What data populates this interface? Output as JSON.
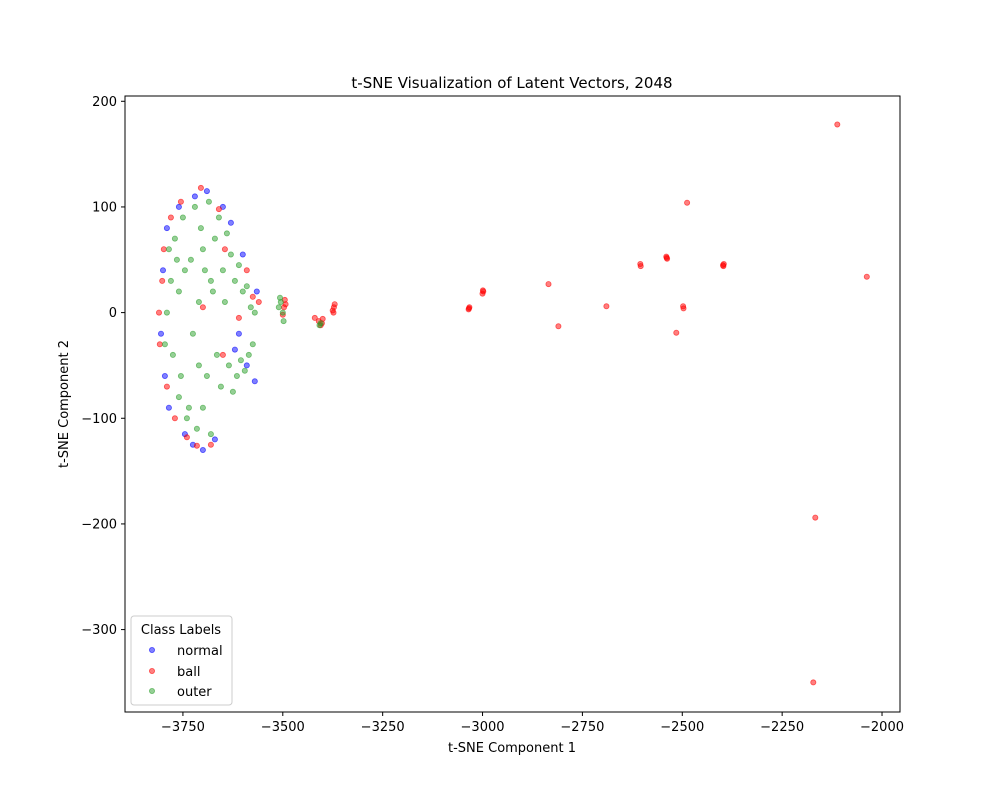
{
  "chart_data": {
    "type": "scatter",
    "title": "t-SNE Visualization of Latent Vectors, 2048",
    "xlabel": "t-SNE Component 1",
    "ylabel": "t-SNE Component 2",
    "xlim": [
      -3895,
      -1955
    ],
    "ylim": [
      -378,
      205
    ],
    "xticks": [
      -3750,
      -3500,
      -3250,
      -3000,
      -2750,
      -2500,
      -2250,
      -2000
    ],
    "yticks": [
      200,
      100,
      0,
      -100,
      -200,
      -300
    ],
    "xtick_labels": [
      "−3750",
      "−3500",
      "−3250",
      "−3000",
      "−2750",
      "−2500",
      "−2250",
      "−2000"
    ],
    "ytick_labels": [
      "200",
      "100",
      "0",
      "−100",
      "−200",
      "−300"
    ],
    "grid": false,
    "legend": {
      "title": "Class Labels",
      "placement": "lower-left"
    },
    "series": [
      {
        "name": "normal",
        "color": "#0000ff",
        "points": [
          [
            -3805,
            -20
          ],
          [
            -3800,
            40
          ],
          [
            -3795,
            -60
          ],
          [
            -3790,
            80
          ],
          [
            -3785,
            -90
          ],
          [
            -3760,
            100
          ],
          [
            -3745,
            -115
          ],
          [
            -3725,
            -125
          ],
          [
            -3700,
            -130
          ],
          [
            -3690,
            115
          ],
          [
            -3670,
            -120
          ],
          [
            -3650,
            100
          ],
          [
            -3630,
            85
          ],
          [
            -3610,
            -20
          ],
          [
            -3600,
            55
          ],
          [
            -3590,
            -50
          ],
          [
            -3570,
            -65
          ],
          [
            -3565,
            20
          ],
          [
            -3620,
            -35
          ],
          [
            -3720,
            110
          ]
        ]
      },
      {
        "name": "ball",
        "color": "#ff0000",
        "points": [
          [
            -3810,
            0
          ],
          [
            -3808,
            -30
          ],
          [
            -3802,
            30
          ],
          [
            -3798,
            60
          ],
          [
            -3790,
            -70
          ],
          [
            -3780,
            90
          ],
          [
            -3770,
            -100
          ],
          [
            -3755,
            105
          ],
          [
            -3740,
            -118
          ],
          [
            -3715,
            -126
          ],
          [
            -3705,
            118
          ],
          [
            -3680,
            -125
          ],
          [
            -3660,
            98
          ],
          [
            -3645,
            60
          ],
          [
            -3590,
            40
          ],
          [
            -3575,
            15
          ],
          [
            -3560,
            10
          ],
          [
            -3610,
            -5
          ],
          [
            -3700,
            5
          ],
          [
            -3650,
            -40
          ],
          [
            -3497,
            5
          ],
          [
            -3495,
            12
          ],
          [
            -3500,
            -2
          ],
          [
            -3493,
            8
          ],
          [
            -3420,
            -5
          ],
          [
            -3410,
            -8
          ],
          [
            -3405,
            -12
          ],
          [
            -3400,
            -6
          ],
          [
            -3402,
            -10
          ],
          [
            -3375,
            2
          ],
          [
            -3372,
            5
          ],
          [
            -3370,
            8
          ],
          [
            -3373,
            0
          ],
          [
            -3035,
            3
          ],
          [
            -3033,
            5
          ],
          [
            -3034,
            4
          ],
          [
            -3000,
            18
          ],
          [
            -2998,
            20
          ],
          [
            -2999,
            21
          ],
          [
            -2835,
            27
          ],
          [
            -2810,
            -13
          ],
          [
            -2690,
            6
          ],
          [
            -2605,
            46
          ],
          [
            -2604,
            44
          ],
          [
            -2540,
            53
          ],
          [
            -2538,
            51
          ],
          [
            -2539,
            52
          ],
          [
            -2498,
            6
          ],
          [
            -2497,
            4
          ],
          [
            -2515,
            -19
          ],
          [
            -2488,
            104
          ],
          [
            -2398,
            45
          ],
          [
            -2397,
            44
          ],
          [
            -2396,
            46
          ],
          [
            -2112,
            178
          ],
          [
            -2038,
            34
          ],
          [
            -2167,
            -194
          ],
          [
            -2172,
            -350
          ]
        ]
      },
      {
        "name": "outer",
        "color": "#2ca02c",
        "points": [
          [
            -3790,
            0
          ],
          [
            -3780,
            30
          ],
          [
            -3775,
            -40
          ],
          [
            -3770,
            70
          ],
          [
            -3760,
            -80
          ],
          [
            -3750,
            90
          ],
          [
            -3740,
            -100
          ],
          [
            -3730,
            50
          ],
          [
            -3725,
            -20
          ],
          [
            -3720,
            100
          ],
          [
            -3715,
            -110
          ],
          [
            -3710,
            10
          ],
          [
            -3705,
            80
          ],
          [
            -3700,
            -90
          ],
          [
            -3695,
            40
          ],
          [
            -3690,
            -60
          ],
          [
            -3685,
            105
          ],
          [
            -3680,
            -115
          ],
          [
            -3675,
            20
          ],
          [
            -3670,
            70
          ],
          [
            -3665,
            -40
          ],
          [
            -3660,
            90
          ],
          [
            -3655,
            -70
          ],
          [
            -3650,
            40
          ],
          [
            -3645,
            10
          ],
          [
            -3640,
            75
          ],
          [
            -3635,
            -50
          ],
          [
            -3630,
            55
          ],
          [
            -3625,
            -75
          ],
          [
            -3620,
            30
          ],
          [
            -3615,
            -60
          ],
          [
            -3610,
            45
          ],
          [
            -3605,
            -45
          ],
          [
            -3600,
            20
          ],
          [
            -3595,
            -55
          ],
          [
            -3590,
            25
          ],
          [
            -3585,
            -40
          ],
          [
            -3580,
            5
          ],
          [
            -3575,
            -30
          ],
          [
            -3570,
            0
          ],
          [
            -3760,
            20
          ],
          [
            -3755,
            -60
          ],
          [
            -3745,
            40
          ],
          [
            -3735,
            -90
          ],
          [
            -3765,
            50
          ],
          [
            -3795,
            -30
          ],
          [
            -3785,
            60
          ],
          [
            -3700,
            60
          ],
          [
            -3710,
            -50
          ],
          [
            -3680,
            30
          ],
          [
            -3505,
            10
          ],
          [
            -3500,
            0
          ],
          [
            -3510,
            5
          ],
          [
            -3498,
            -8
          ],
          [
            -3507,
            14
          ],
          [
            -3405,
            -10
          ],
          [
            -3408,
            -12
          ]
        ]
      }
    ]
  }
}
